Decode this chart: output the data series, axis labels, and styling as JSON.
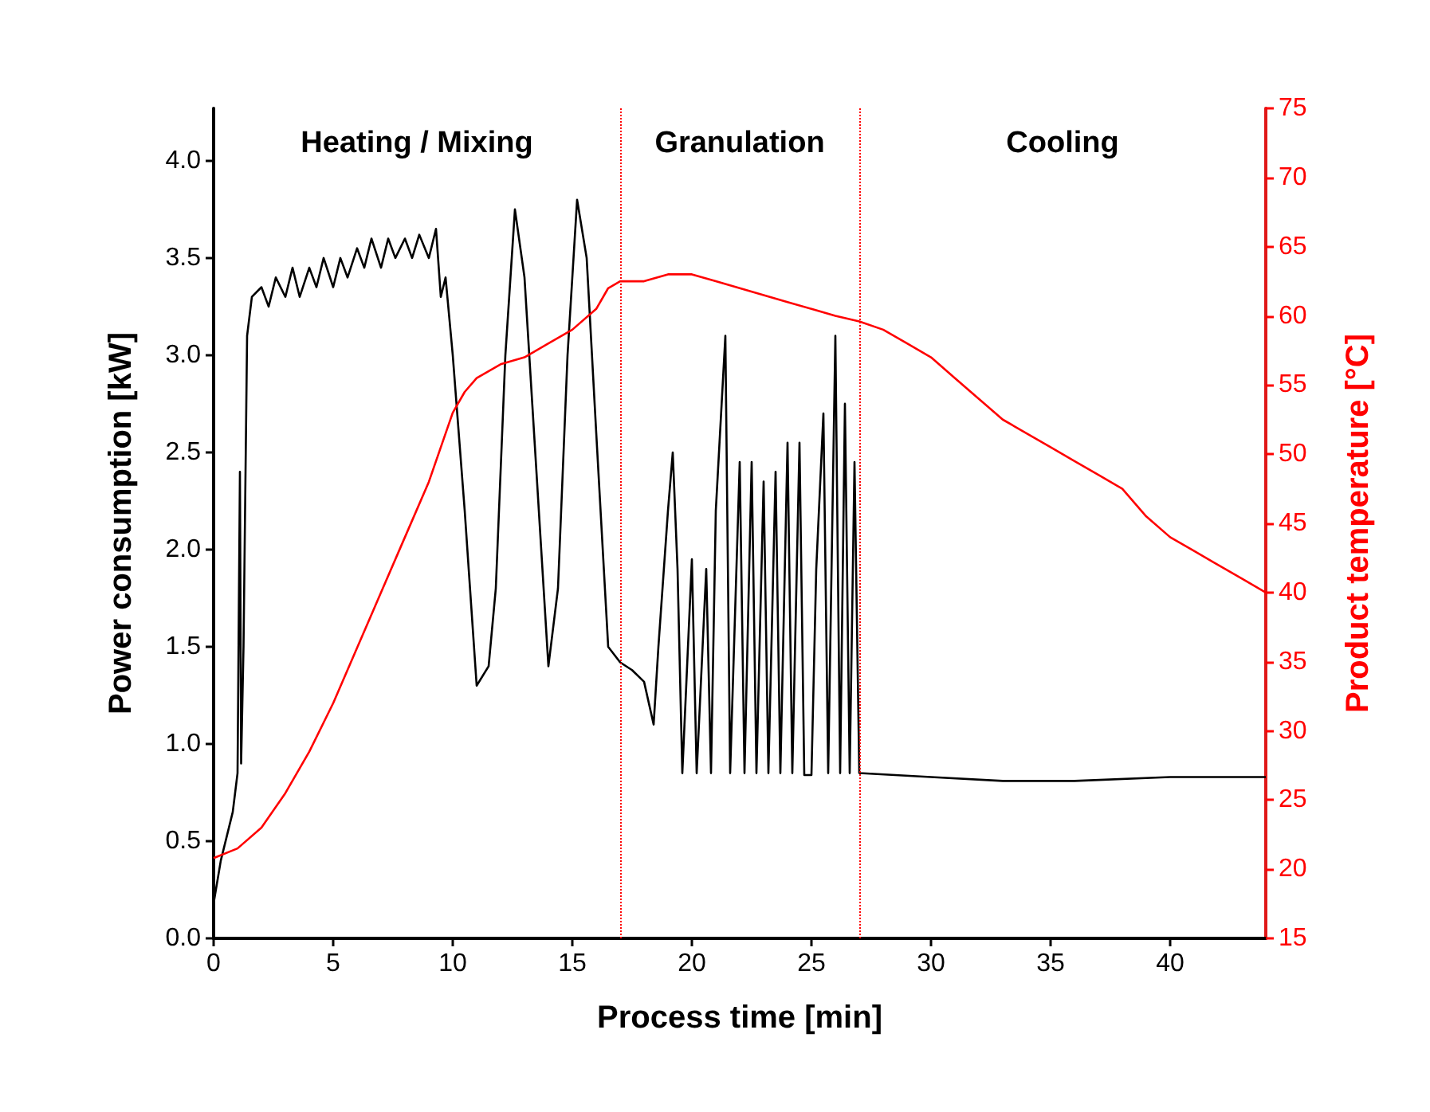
{
  "chart_data": {
    "type": "line",
    "xlabel": "Process time [min]",
    "ylabel": "Power consumption [kW]",
    "y2label": "Product temperature [°C]",
    "xlim": [
      0,
      44
    ],
    "xticks": [
      0,
      5,
      10,
      15,
      20,
      25,
      30,
      35,
      40
    ],
    "ylim": [
      0,
      4.27
    ],
    "yticks": [
      {
        "value": 0,
        "label": "0.0"
      },
      {
        "value": 0.5,
        "label": "0.5"
      },
      {
        "value": 1,
        "label": "1.0"
      },
      {
        "value": 1.5,
        "label": "1.5"
      },
      {
        "value": 2,
        "label": "2.0"
      },
      {
        "value": 2.5,
        "label": "2.5"
      },
      {
        "value": 3,
        "label": "3.0"
      },
      {
        "value": 3.5,
        "label": "3.5"
      },
      {
        "value": 4,
        "label": "4.0"
      }
    ],
    "y2lim": [
      15,
      75
    ],
    "y2ticks": [
      15,
      20,
      25,
      30,
      35,
      40,
      45,
      50,
      55,
      60,
      65,
      70,
      75
    ],
    "grid": false,
    "marker": "none",
    "line_style": "solid",
    "series": [
      {
        "color": "#000000",
        "axis": "y",
        "x": [
          0,
          0.3,
          0.8,
          1.0,
          1.1,
          1.15,
          1.25,
          1.4,
          1.6,
          2,
          2.3,
          2.6,
          3,
          3.3,
          3.6,
          4,
          4.3,
          4.6,
          5,
          5.3,
          5.6,
          6,
          6.3,
          6.6,
          7,
          7.3,
          7.6,
          8,
          8.3,
          8.6,
          9,
          9.3,
          9.5,
          9.7,
          10,
          10.5,
          11,
          11.5,
          11.8,
          12.2,
          12.6,
          13,
          13.5,
          14,
          14.4,
          14.8,
          15.2,
          15.6,
          16,
          16.5,
          17,
          17.5,
          18,
          18.4,
          18.6,
          19,
          19.2,
          19.4,
          19.6,
          20,
          20.2,
          20.6,
          20.8,
          21,
          21.4,
          21.6,
          22,
          22.2,
          22.5,
          22.7,
          23,
          23.2,
          23.5,
          23.7,
          24,
          24.2,
          24.5,
          24.7,
          25,
          25.2,
          25.5,
          25.7,
          26,
          26.2,
          26.4,
          26.6,
          26.8,
          27,
          30,
          33,
          36,
          40,
          44
        ],
        "values": [
          0.18,
          0.4,
          0.65,
          0.85,
          2.4,
          0.9,
          1.5,
          3.1,
          3.3,
          3.35,
          3.25,
          3.4,
          3.3,
          3.45,
          3.3,
          3.45,
          3.35,
          3.5,
          3.35,
          3.5,
          3.4,
          3.55,
          3.45,
          3.6,
          3.45,
          3.6,
          3.5,
          3.6,
          3.5,
          3.62,
          3.5,
          3.65,
          3.3,
          3.4,
          3.0,
          2.2,
          1.3,
          1.4,
          1.8,
          3.0,
          3.75,
          3.4,
          2.4,
          1.4,
          1.8,
          3.0,
          3.8,
          3.5,
          2.6,
          1.5,
          1.42,
          1.38,
          1.32,
          1.1,
          1.5,
          2.2,
          2.5,
          1.9,
          0.85,
          1.95,
          0.85,
          1.9,
          0.85,
          2.2,
          3.1,
          0.85,
          2.45,
          0.85,
          2.45,
          0.85,
          2.35,
          0.85,
          2.4,
          0.85,
          2.55,
          0.85,
          2.55,
          0.84,
          0.84,
          1.9,
          2.7,
          0.85,
          3.1,
          0.85,
          2.75,
          0.85,
          2.45,
          0.85,
          0.83,
          0.81,
          0.81,
          0.83,
          0.83
        ]
      },
      {
        "color": "#ff0000",
        "axis": "y2",
        "x": [
          0,
          1,
          2,
          3,
          4,
          5,
          6,
          7,
          8,
          9,
          10,
          10.5,
          11,
          12,
          13,
          14,
          15,
          16,
          16.5,
          17,
          18,
          19,
          20,
          21,
          22,
          23,
          24,
          25,
          26,
          27,
          28,
          29,
          30,
          31,
          32,
          33,
          34,
          35,
          36,
          37,
          38,
          39,
          40,
          41,
          42,
          43,
          44
        ],
        "values": [
          20.8,
          21.5,
          23,
          25.5,
          28.5,
          32,
          36,
          40,
          44,
          48,
          53,
          54.5,
          55.5,
          56.5,
          57,
          58,
          59,
          60.5,
          62,
          62.5,
          62.5,
          63,
          63,
          62.5,
          62,
          61.5,
          61,
          60.5,
          60,
          59.6,
          59,
          58,
          57,
          55.5,
          54,
          52.5,
          51.5,
          50.5,
          49.5,
          48.5,
          47.5,
          45.5,
          44,
          43,
          42,
          41,
          40
        ]
      }
    ],
    "ref_lines": [
      {
        "axis": "x",
        "value": 17,
        "color": "#ff0000",
        "line_style": "dotted"
      },
      {
        "axis": "x",
        "value": 27,
        "color": "#ff0000",
        "line_style": "dotted"
      }
    ],
    "annotations": [
      "Heating / Mixing",
      "Granulation",
      "Cooling"
    ]
  }
}
